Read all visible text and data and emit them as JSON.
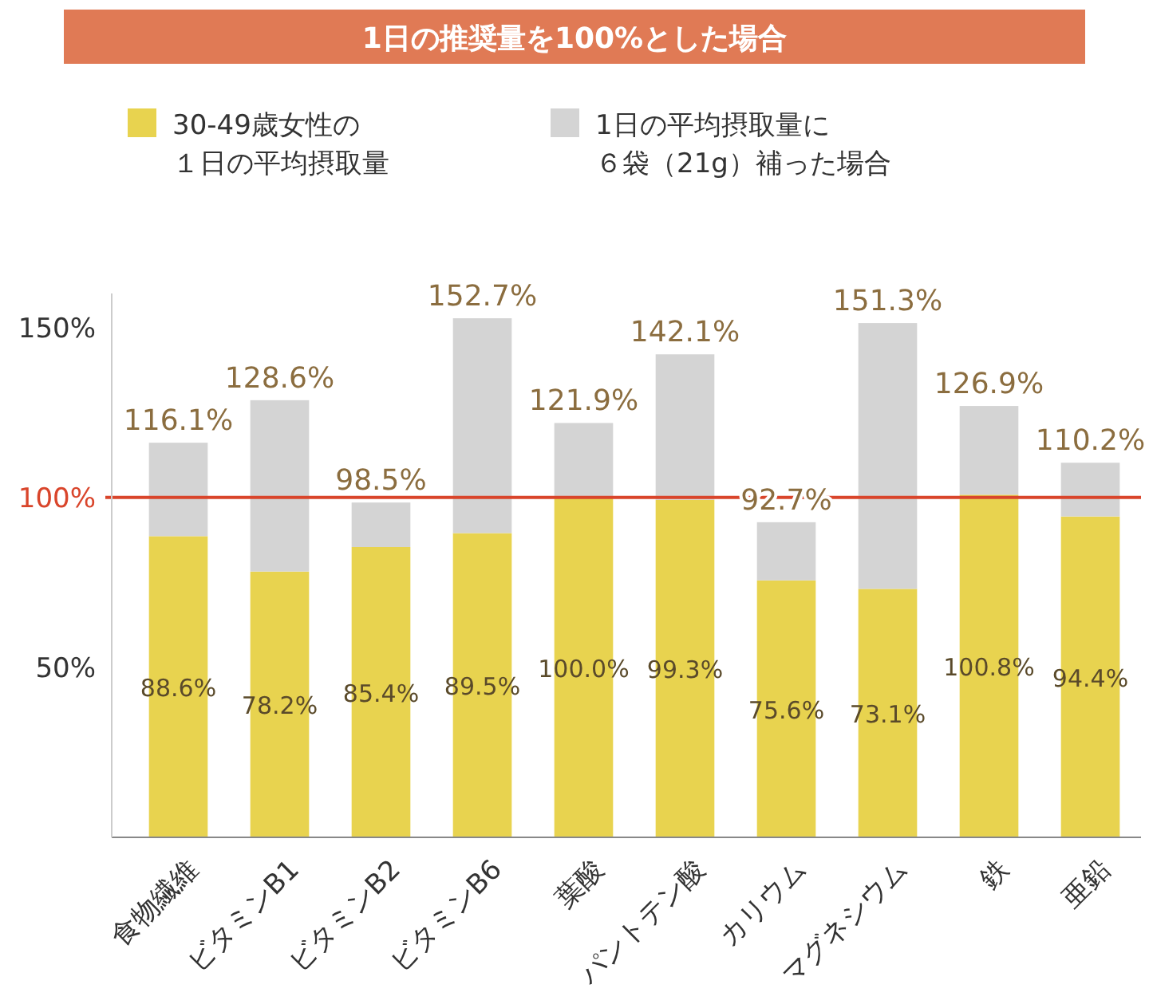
{
  "chart_data": {
    "type": "bar",
    "stacked": true,
    "title": "1日の推奨量を100%とした場合",
    "categories": [
      "食物繊維",
      "ビタミンB1",
      "ビタミンB2",
      "ビタミンB6",
      "葉酸",
      "パントテン酸",
      "カリウム",
      "マグネシウム",
      "鉄",
      "亜鉛"
    ],
    "series": [
      {
        "name": "30-49歳女性の１日の平均摂取量",
        "color": "#e8d34f",
        "values": [
          88.6,
          78.2,
          85.4,
          89.5,
          100.0,
          99.3,
          75.6,
          73.1,
          100.8,
          94.4
        ],
        "value_labels": [
          "88.6%",
          "78.2%",
          "85.4%",
          "89.5%",
          "100.0%",
          "99.3%",
          "75.6%",
          "73.1%",
          "100.8%",
          "94.4%"
        ]
      },
      {
        "name": "1日の平均摂取量に６袋（21g）補った場合",
        "color": "#d4d4d4",
        "values": [
          27.5,
          50.4,
          13.1,
          63.2,
          21.9,
          42.8,
          17.1,
          78.2,
          26.1,
          15.8
        ]
      }
    ],
    "totals": [
      "116.1%",
      "128.6%",
      "98.5%",
      "152.7%",
      "121.9%",
      "142.1%",
      "92.7%",
      "151.3%",
      "126.9%",
      "110.2%"
    ],
    "ylim": [
      0,
      160
    ],
    "yticks": [
      {
        "value": 50,
        "label": "50%"
      },
      {
        "value": 100,
        "label": "100%"
      },
      {
        "value": 150,
        "label": "150%"
      }
    ],
    "ref_lines": [
      {
        "axis": "y",
        "value": 100,
        "color": "#d9452b"
      }
    ],
    "legend": "top"
  }
}
